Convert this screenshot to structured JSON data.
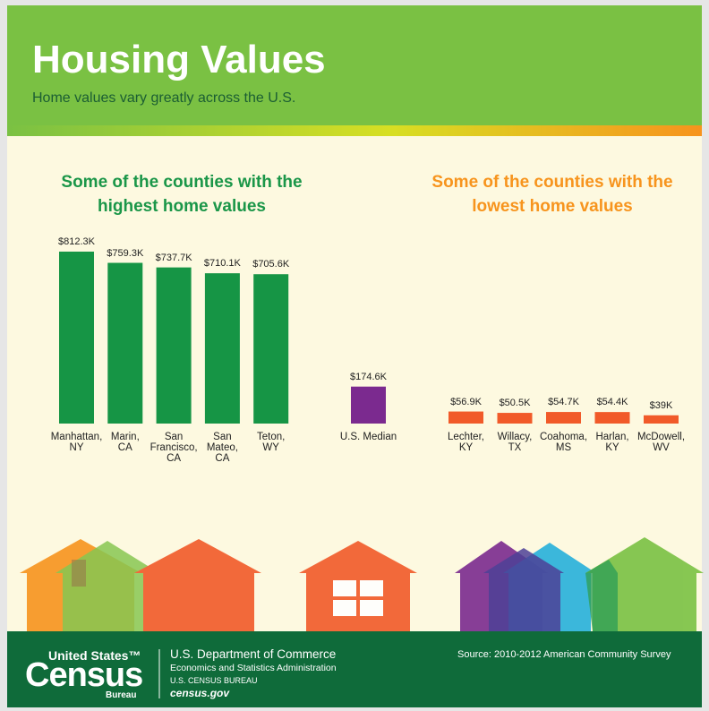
{
  "header": {
    "title": "Housing Values",
    "subtitle": "Home values vary greatly across the U.S."
  },
  "chart_data": [
    {
      "type": "bar",
      "title": "Some of the counties with the highest home values",
      "title_color": "#1a9648",
      "categories": [
        "Manhattan, NY",
        "Marin, CA",
        "San Francisco, CA",
        "San Mateo, CA",
        "Teton, WY"
      ],
      "values": [
        812300,
        759300,
        737700,
        710100,
        705600
      ],
      "value_labels": [
        "$812.3K",
        "$759.3K",
        "$737.7K",
        "$710.1K",
        "$705.6K"
      ],
      "color": "#169545"
    },
    {
      "type": "bar",
      "categories": [
        "U.S. Median"
      ],
      "values": [
        174600
      ],
      "value_labels": [
        "$174.6K"
      ],
      "color": "#7b2a8f"
    },
    {
      "type": "bar",
      "title": "Some of the counties with the lowest home values",
      "title_color": "#f7941d",
      "categories": [
        "Lechter, KY",
        "Willacy, TX",
        "Coahoma, MS",
        "Harlan, KY",
        "McDowell, WV"
      ],
      "values": [
        56900,
        50500,
        54700,
        54400,
        39000
      ],
      "value_labels": [
        "$56.9K",
        "$50.5K",
        "$54.7K",
        "$54.4K",
        "$39K"
      ],
      "color": "#f15a29"
    }
  ],
  "footer": {
    "logo_top": "United States™",
    "logo_main": "Census",
    "logo_bottom": "Bureau",
    "department": "U.S. Department of Commerce",
    "administration": "Economics and Statistics Administration",
    "bureau": "U.S. CENSUS BUREAU",
    "website": "census.gov",
    "source": "Source: 2010-2012 American Community Survey"
  }
}
